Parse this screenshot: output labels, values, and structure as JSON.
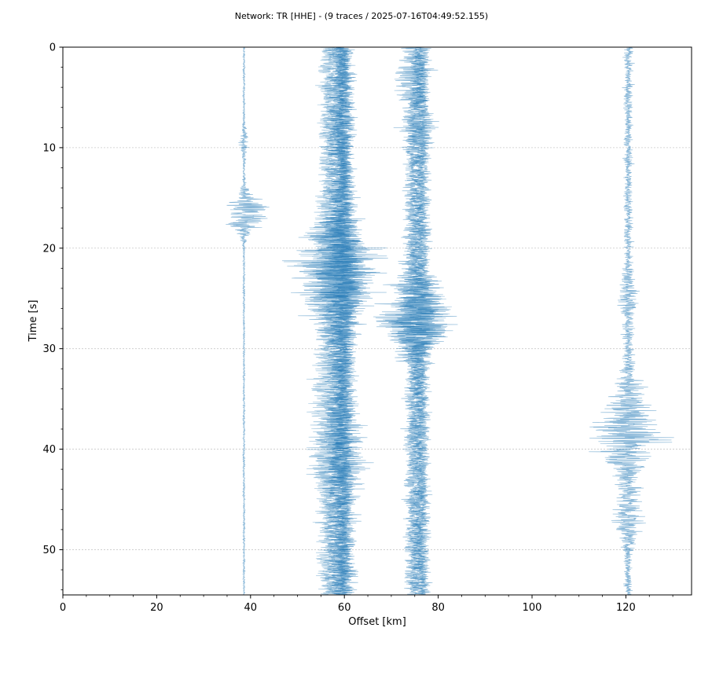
{
  "chart_data": {
    "type": "line",
    "title": "Network: TR [HHE] - (9 traces / 2025-07-16T04:49:52.155)",
    "xlabel": "Offset [km]",
    "ylabel": "Time [s]",
    "xlim": [
      0,
      134
    ],
    "ylim": [
      0,
      54.5
    ],
    "y_inverted": true,
    "grid": "horizontal dotted",
    "xticks": [
      0,
      20,
      40,
      60,
      80,
      100,
      120
    ],
    "xtick_labels": [
      "0",
      "20",
      "40",
      "60",
      "80",
      "100",
      "120"
    ],
    "yticks": [
      0,
      10,
      20,
      30,
      40,
      50
    ],
    "ytick_labels": [
      "0",
      "10",
      "20",
      "30",
      "40",
      "50"
    ],
    "traces": [
      {
        "offset_km": 38.6,
        "base_amp_km": 0.25,
        "events": [
          {
            "t": 16.5,
            "amp_km": 6.5,
            "width_s": 1.2
          },
          {
            "t": 9.5,
            "amp_km": 0.8,
            "width_s": 1.0
          }
        ],
        "opacity": 0.55,
        "start_s": 0
      },
      {
        "offset_km": 56.7,
        "base_amp_km": 2.6,
        "events": [
          {
            "t": 21.5,
            "amp_km": 4.5,
            "width_s": 3.0
          },
          {
            "t": 38,
            "amp_km": 3.0,
            "width_s": 4.0
          }
        ],
        "opacity": 0.45,
        "start_s": 0
      },
      {
        "offset_km": 58.7,
        "base_amp_km": 3.0,
        "events": [
          {
            "t": 21.5,
            "amp_km": 5.5,
            "width_s": 3.0
          },
          {
            "t": 25,
            "amp_km": 4.5,
            "width_s": 2.5
          }
        ],
        "opacity": 0.55,
        "start_s": 0
      },
      {
        "offset_km": 59.6,
        "base_amp_km": 2.8,
        "events": [
          {
            "t": 22,
            "amp_km": 4.0,
            "width_s": 3.0
          },
          {
            "t": 40,
            "amp_km": 3.5,
            "width_s": 3.0
          }
        ],
        "opacity": 0.55,
        "start_s": 0
      },
      {
        "offset_km": 60.2,
        "base_amp_km": 2.4,
        "events": [
          {
            "t": 22,
            "amp_km": 3.0,
            "width_s": 3.0
          }
        ],
        "opacity": 0.55,
        "start_s": 0
      },
      {
        "offset_km": 74.6,
        "base_amp_km": 2.2,
        "events": [
          {
            "t": 26.5,
            "amp_km": 6.5,
            "width_s": 2.5
          },
          {
            "t": 3,
            "amp_km": 2.5,
            "width_s": 1.5
          }
        ],
        "opacity": 0.55,
        "start_s": 0
      },
      {
        "offset_km": 75.9,
        "base_amp_km": 2.0,
        "events": [
          {
            "t": 26.5,
            "amp_km": 6.0,
            "width_s": 2.5
          },
          {
            "t": 8,
            "amp_km": 2.0,
            "width_s": 1.5
          }
        ],
        "opacity": 0.55,
        "start_s": 0
      },
      {
        "offset_km": 76.8,
        "base_amp_km": 1.8,
        "events": [
          {
            "t": 27,
            "amp_km": 5.0,
            "width_s": 2.0
          }
        ],
        "opacity": 0.5,
        "start_s": 0
      },
      {
        "offset_km": 120.5,
        "base_amp_km": 1.1,
        "events": [
          {
            "t": 38.5,
            "amp_km": 7.0,
            "width_s": 3.0
          },
          {
            "t": 46.5,
            "amp_km": 3.0,
            "width_s": 1.5
          },
          {
            "t": 25,
            "amp_km": 1.5,
            "width_s": 1.5
          }
        ],
        "opacity": 0.55,
        "start_s": 0
      }
    ],
    "trace_color": "#1f77b4"
  }
}
